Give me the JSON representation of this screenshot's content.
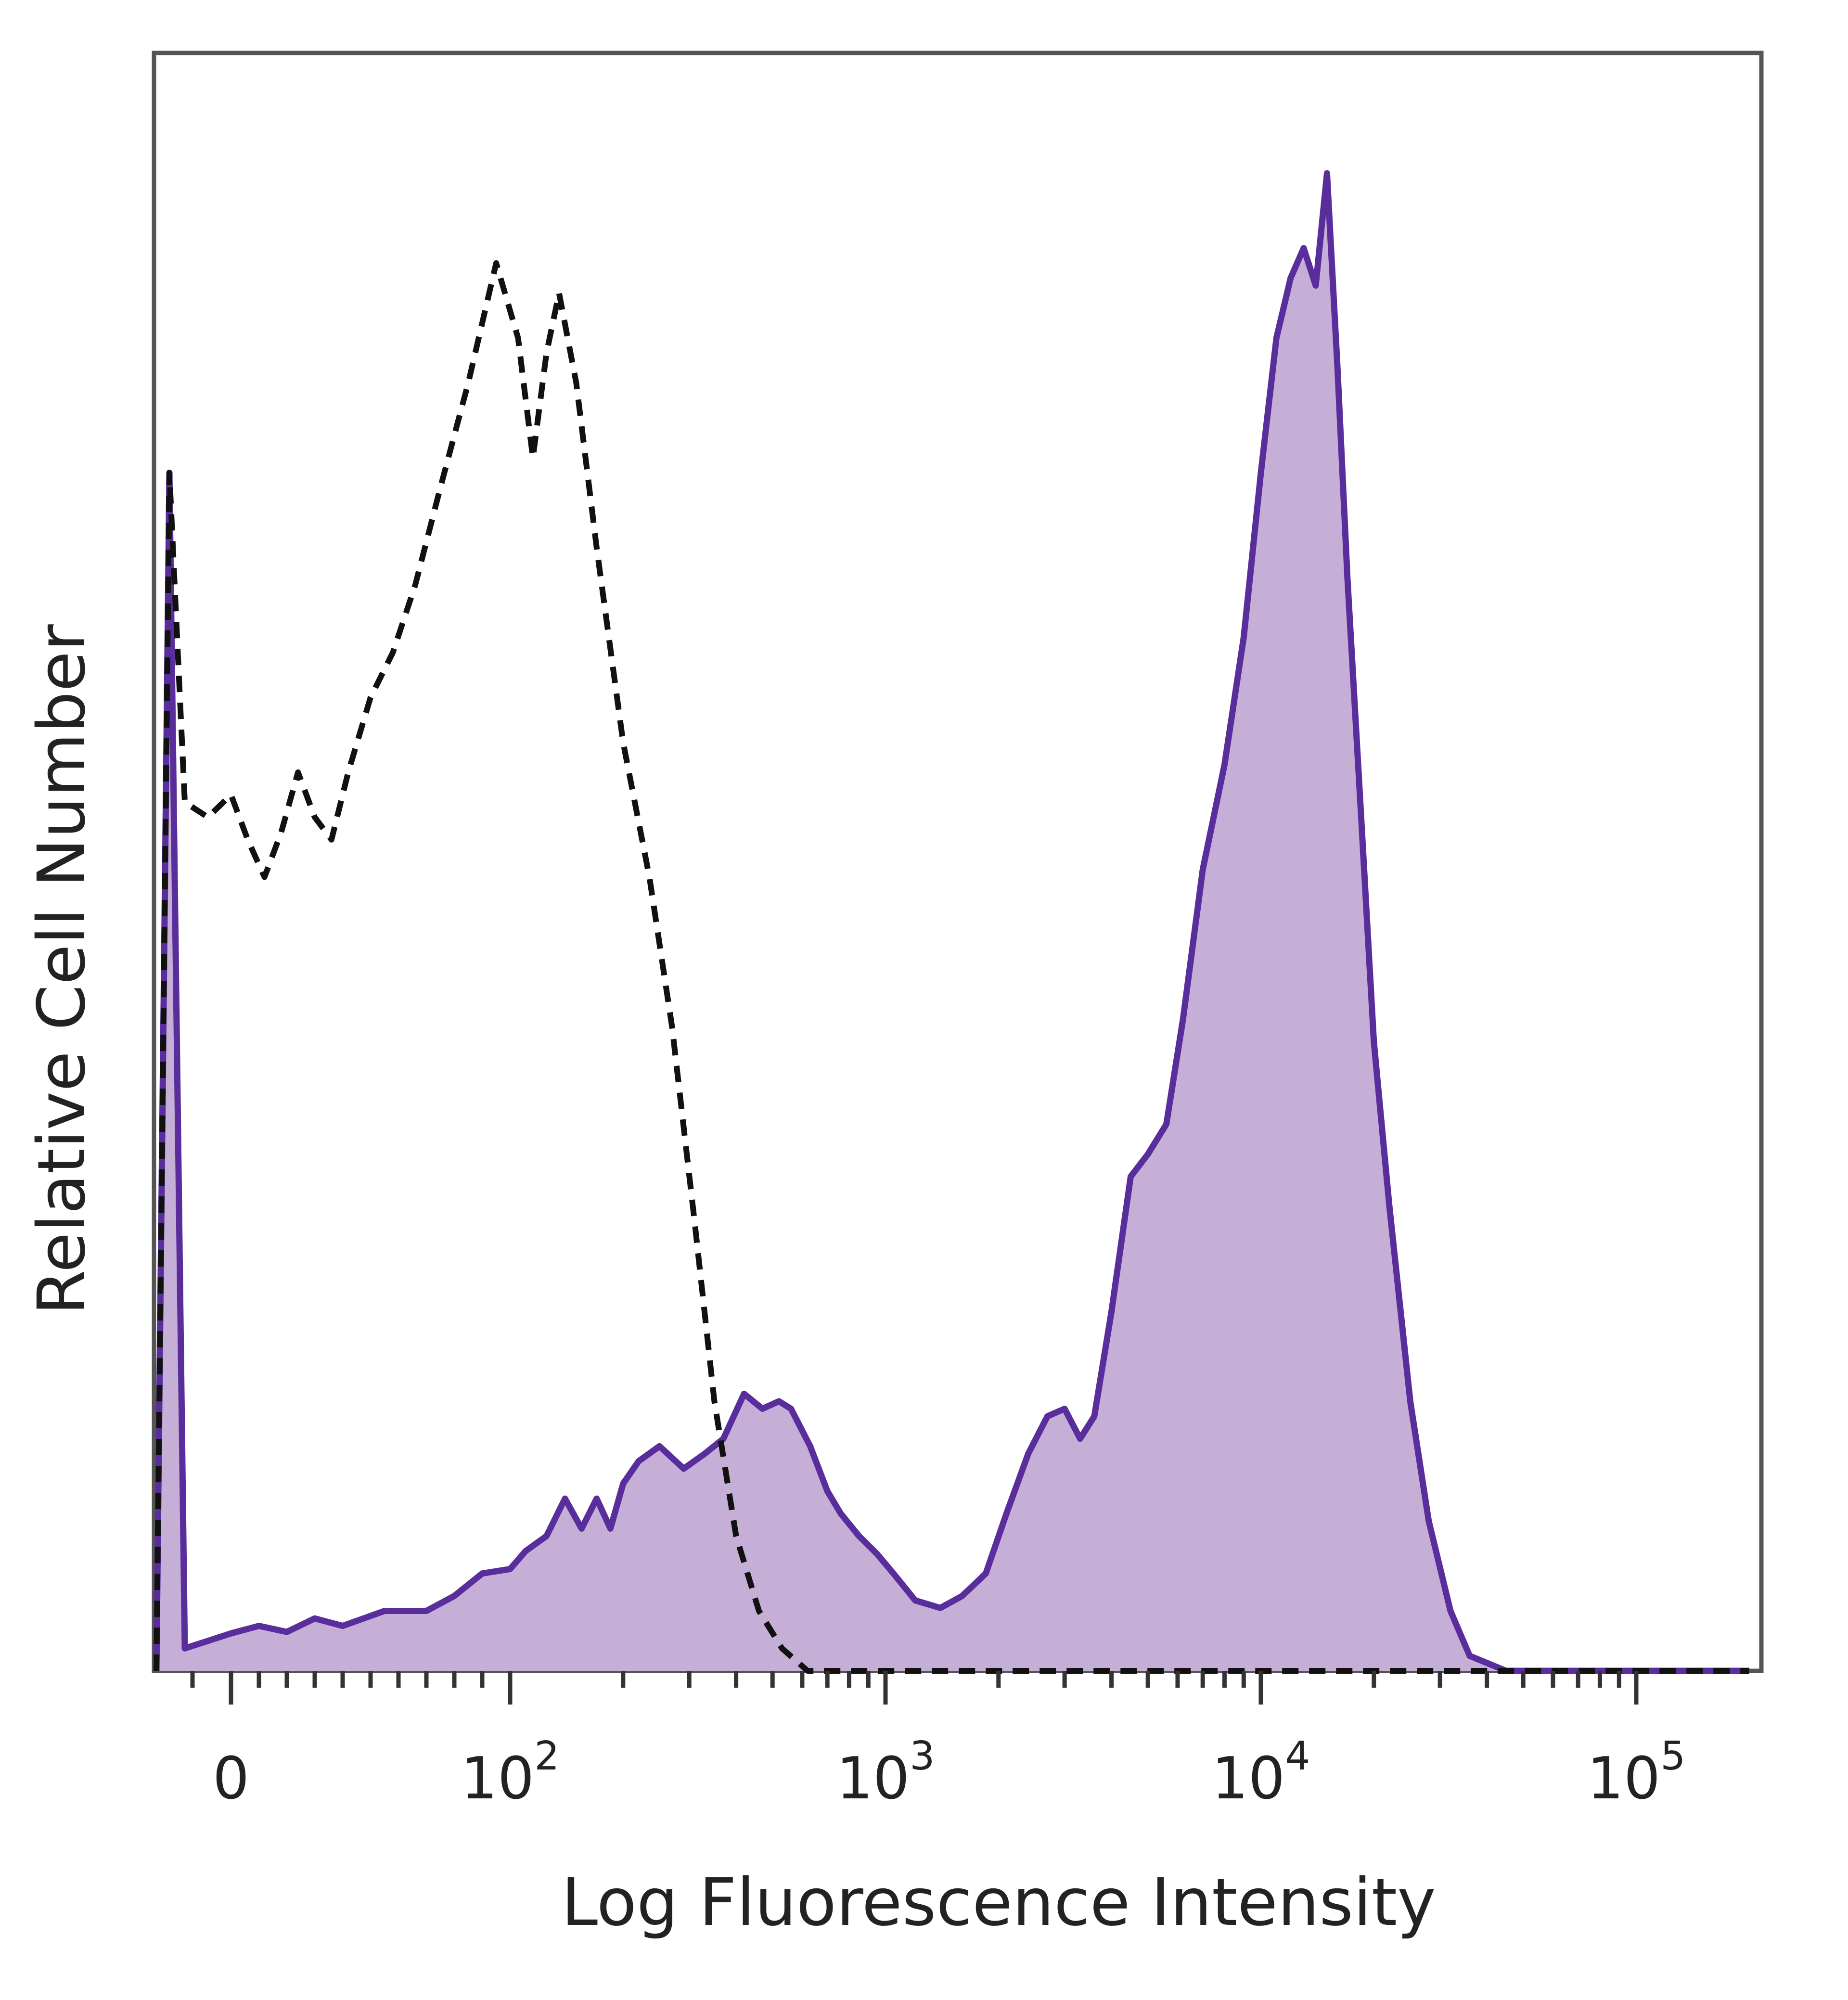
{
  "chart_data": {
    "type": "area",
    "title": "",
    "xlabel": "Log Fluorescence Intensity",
    "ylabel": "Relative Cell Number",
    "x_scale": "biexponential (log above 10^2)",
    "xlim": [
      -20,
      200000
    ],
    "ylim": [
      0,
      100
    ],
    "grid": false,
    "legend": "none",
    "x_ticks": [
      {
        "value": 0,
        "base": "0",
        "exp": ""
      },
      {
        "value": 100,
        "base": "10",
        "exp": "2"
      },
      {
        "value": 1000,
        "base": "10",
        "exp": "3"
      },
      {
        "value": 10000,
        "base": "10",
        "exp": "4"
      },
      {
        "value": 100000,
        "base": "10",
        "exp": "5"
      }
    ],
    "series": [
      {
        "style": "filled",
        "color": "#5a2d9c",
        "fill": "#c6afd6",
        "points": [
          [
            -20,
            0
          ],
          [
            -16,
            80
          ],
          [
            -12,
            1.5
          ],
          [
            -6,
            2
          ],
          [
            0,
            2.5
          ],
          [
            10,
            3
          ],
          [
            20,
            2.6
          ],
          [
            30,
            3.5
          ],
          [
            40,
            3
          ],
          [
            55,
            4
          ],
          [
            70,
            4
          ],
          [
            80,
            5
          ],
          [
            90,
            6.5
          ],
          [
            100,
            6.8
          ],
          [
            110,
            8
          ],
          [
            125,
            9
          ],
          [
            140,
            11.5
          ],
          [
            155,
            9.5
          ],
          [
            170,
            11.5
          ],
          [
            185,
            9.5
          ],
          [
            200,
            12.5
          ],
          [
            220,
            14
          ],
          [
            250,
            15
          ],
          [
            290,
            13.5
          ],
          [
            330,
            14.5
          ],
          [
            370,
            15.5
          ],
          [
            420,
            18.5
          ],
          [
            470,
            17.5
          ],
          [
            520,
            18
          ],
          [
            560,
            17.5
          ],
          [
            630,
            15
          ],
          [
            700,
            12
          ],
          [
            760,
            10.5
          ],
          [
            850,
            9
          ],
          [
            950,
            7.8
          ],
          [
            1050,
            6.5
          ],
          [
            1200,
            4.7
          ],
          [
            1400,
            4.2
          ],
          [
            1600,
            5
          ],
          [
            1850,
            6.5
          ],
          [
            2100,
            10.5
          ],
          [
            2400,
            14.5
          ],
          [
            2700,
            17
          ],
          [
            3000,
            17.5
          ],
          [
            3300,
            15.5
          ],
          [
            3600,
            17
          ],
          [
            4000,
            24
          ],
          [
            4500,
            33
          ],
          [
            5000,
            34.5
          ],
          [
            5600,
            36.5
          ],
          [
            6200,
            43.5
          ],
          [
            7000,
            53.5
          ],
          [
            8000,
            60.5
          ],
          [
            9000,
            69
          ],
          [
            10000,
            80
          ],
          [
            11000,
            89
          ],
          [
            12000,
            93
          ],
          [
            13000,
            95
          ],
          [
            14000,
            92.5
          ],
          [
            15000,
            100
          ],
          [
            16000,
            87
          ],
          [
            17000,
            73
          ],
          [
            18500,
            57
          ],
          [
            20000,
            42
          ],
          [
            22000,
            31
          ],
          [
            25000,
            18
          ],
          [
            28000,
            10
          ],
          [
            32000,
            4
          ],
          [
            36000,
            1
          ],
          [
            45000,
            0
          ],
          [
            200000,
            0
          ]
        ]
      },
      {
        "style": "dashed",
        "color": "#111111",
        "fill": "none",
        "points": [
          [
            -20,
            0
          ],
          [
            -16,
            80
          ],
          [
            -12,
            58
          ],
          [
            -6,
            57
          ],
          [
            0,
            58.5
          ],
          [
            6,
            55.5
          ],
          [
            12,
            53
          ],
          [
            18,
            56
          ],
          [
            24,
            60
          ],
          [
            30,
            57
          ],
          [
            36,
            55.5
          ],
          [
            42,
            60
          ],
          [
            50,
            65
          ],
          [
            58,
            68
          ],
          [
            66,
            72.5
          ],
          [
            75,
            79
          ],
          [
            85,
            86
          ],
          [
            95,
            94
          ],
          [
            105,
            89
          ],
          [
            115,
            81
          ],
          [
            125,
            88
          ],
          [
            135,
            92
          ],
          [
            150,
            86
          ],
          [
            170,
            75
          ],
          [
            200,
            62
          ],
          [
            235,
            53
          ],
          [
            270,
            43
          ],
          [
            310,
            30
          ],
          [
            350,
            18
          ],
          [
            400,
            9
          ],
          [
            460,
            4
          ],
          [
            530,
            1.5
          ],
          [
            620,
            0
          ],
          [
            200000,
            0
          ]
        ]
      }
    ]
  }
}
